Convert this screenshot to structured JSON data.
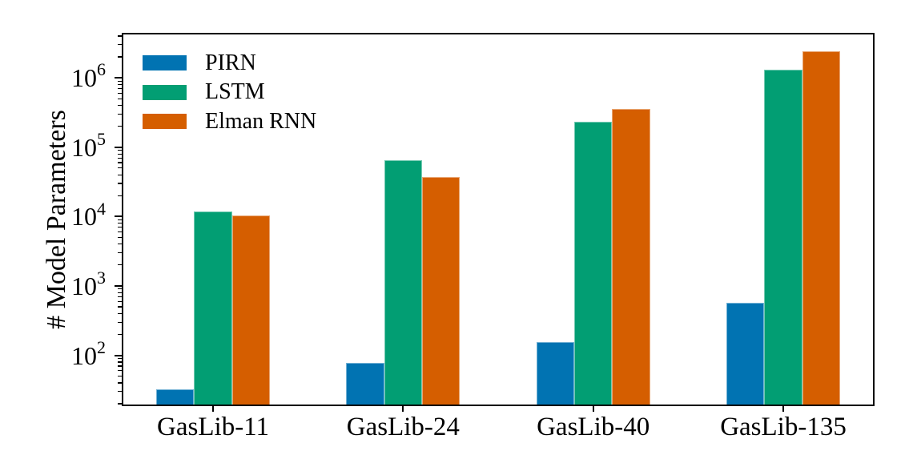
{
  "chart_data": {
    "type": "bar",
    "title": "",
    "xlabel": "",
    "ylabel": "# Model Parameters",
    "yscale": "log",
    "ylim": [
      18.5,
      4450000
    ],
    "grid": false,
    "categories": [
      "GasLib-11",
      "GasLib-24",
      "GasLib-40",
      "GasLib-135"
    ],
    "series": [
      {
        "name": "PIRN",
        "color": "#0173B2",
        "values": [
          32,
          78,
          156,
          570
        ]
      },
      {
        "name": "LSTM",
        "color": "#029E73",
        "values": [
          11800,
          65000,
          230000,
          1320000
        ]
      },
      {
        "name": "Elman RNN",
        "color": "#D55E00",
        "values": [
          10300,
          37400,
          358000,
          2390000
        ]
      }
    ],
    "y_tick_exponents": [
      2,
      3,
      4,
      5,
      6
    ],
    "y_tick_base": "10",
    "legend": {
      "position": "upper-left",
      "frame": false
    },
    "axis_color": "#000000",
    "background_color": "#ffffff"
  }
}
